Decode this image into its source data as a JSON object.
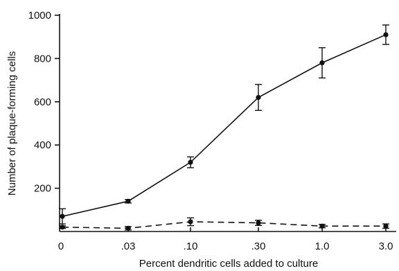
{
  "chart_data": {
    "type": "line",
    "xlabel": "Percent dendritic cells added to culture",
    "ylabel": "Number of plaque-forming cells",
    "categories": [
      "0",
      ".03",
      ".10",
      ".30",
      "1.0",
      "3.0"
    ],
    "ylim": [
      0,
      1000
    ],
    "yticks": [
      {
        "value": 200,
        "label": "200"
      },
      {
        "value": 400,
        "label": "400"
      },
      {
        "value": 600,
        "label": "600"
      },
      {
        "value": 800,
        "label": "800"
      },
      {
        "value": 1000,
        "label": "1000"
      }
    ],
    "grid": false,
    "series": [
      {
        "style": "solid",
        "color": "#111111",
        "values": [
          70,
          140,
          320,
          620,
          780,
          910
        ],
        "errors": [
          35,
          8,
          25,
          60,
          70,
          45
        ]
      },
      {
        "style": "dashed",
        "color": "#111111",
        "values": [
          20,
          15,
          45,
          40,
          25,
          25
        ],
        "errors": [
          6,
          8,
          18,
          12,
          8,
          10
        ]
      }
    ]
  }
}
